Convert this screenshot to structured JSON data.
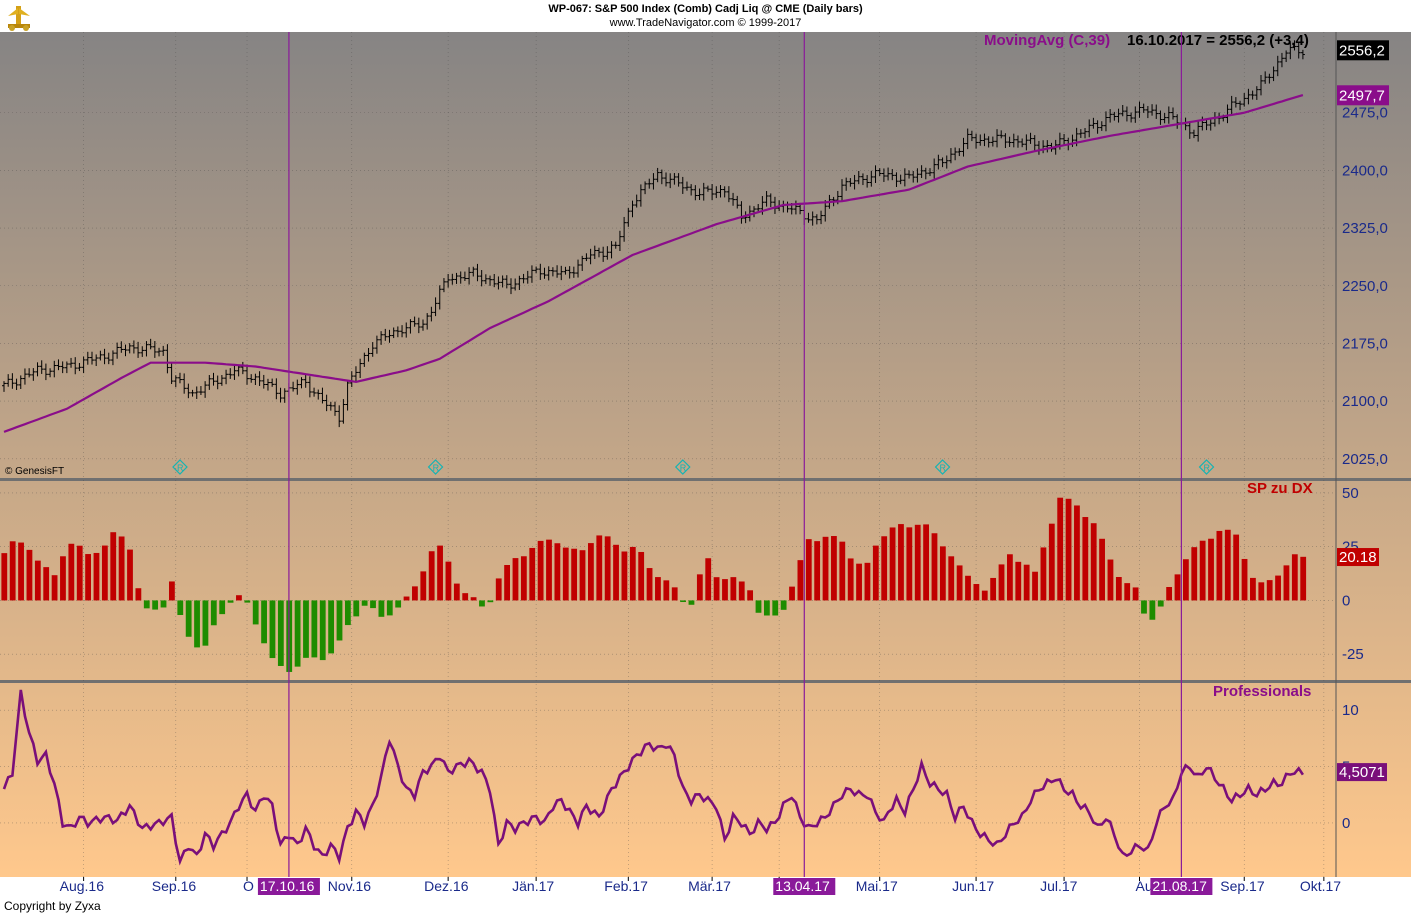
{
  "header": {
    "title_line": "WP-067:  S&P 500 Index (Comb) Cadj Liq @ CME  (Daily bars)",
    "subtitle_line": "www.TradeNavigator.com © 1999-2017"
  },
  "footer": {
    "copyright": "Copyright by Zyxa"
  },
  "colors": {
    "bg_top": "#868484",
    "bg_bottom": "#ffc88c",
    "ma": "#8a0d8a",
    "bar_up": "#c00000",
    "bar_down": "#1e8c00",
    "vline": "#8a1a9a",
    "price_box": "#000000",
    "ma_box": "#8a0d8a",
    "sp_box": "#c00000",
    "pro_box": "#7a0f7a",
    "separator": "#707070"
  },
  "chart_data": [
    {
      "type": "line",
      "panel": "price",
      "watermark": "© GenesisFT",
      "indicator_label": "MovingAvg (C,39)",
      "readout": "16.10.2017 = 2556,2 (+3,4)",
      "last_price": 2556.2,
      "last_price_label": "2556,2",
      "ma_last": 2497.7,
      "ma_last_label": "2497,7",
      "ylim": [
        2000,
        2580
      ],
      "yticks": [
        2025,
        2100,
        2175,
        2250,
        2325,
        2400,
        2475
      ],
      "ytick_labels": [
        "2025,0",
        "2100,0",
        "2175,0",
        "2250,0",
        "2325,0",
        "2400,0",
        "2475,0"
      ],
      "x_index_range": [
        0,
        310
      ],
      "price_knots": [
        [
          0,
          2120
        ],
        [
          8,
          2140
        ],
        [
          15,
          2145
        ],
        [
          25,
          2160
        ],
        [
          30,
          2170
        ],
        [
          38,
          2165
        ],
        [
          40,
          2130
        ],
        [
          45,
          2110
        ],
        [
          50,
          2125
        ],
        [
          55,
          2140
        ],
        [
          60,
          2130
        ],
        [
          66,
          2110
        ],
        [
          72,
          2125
        ],
        [
          76,
          2100
        ],
        [
          80,
          2080
        ],
        [
          82,
          2120
        ],
        [
          88,
          2175
        ],
        [
          95,
          2195
        ],
        [
          100,
          2200
        ],
        [
          106,
          2260
        ],
        [
          112,
          2265
        ],
        [
          120,
          2250
        ],
        [
          128,
          2270
        ],
        [
          134,
          2265
        ],
        [
          140,
          2290
        ],
        [
          146,
          2300
        ],
        [
          150,
          2360
        ],
        [
          156,
          2395
        ],
        [
          160,
          2385
        ],
        [
          166,
          2370
        ],
        [
          172,
          2375
        ],
        [
          176,
          2340
        ],
        [
          182,
          2360
        ],
        [
          188,
          2350
        ],
        [
          194,
          2335
        ],
        [
          200,
          2380
        ],
        [
          208,
          2395
        ],
        [
          216,
          2390
        ],
        [
          224,
          2410
        ],
        [
          230,
          2440
        ],
        [
          240,
          2440
        ],
        [
          250,
          2430
        ],
        [
          256,
          2445
        ],
        [
          264,
          2470
        ],
        [
          272,
          2478
        ],
        [
          278,
          2470
        ],
        [
          284,
          2450
        ],
        [
          290,
          2470
        ],
        [
          300,
          2510
        ],
        [
          306,
          2555
        ],
        [
          310,
          2556
        ]
      ],
      "ma_knots": [
        [
          0,
          2060
        ],
        [
          15,
          2090
        ],
        [
          28,
          2130
        ],
        [
          35,
          2150
        ],
        [
          48,
          2150
        ],
        [
          60,
          2145
        ],
        [
          72,
          2135
        ],
        [
          84,
          2125
        ],
        [
          96,
          2140
        ],
        [
          104,
          2155
        ],
        [
          116,
          2195
        ],
        [
          130,
          2230
        ],
        [
          150,
          2290
        ],
        [
          170,
          2330
        ],
        [
          186,
          2355
        ],
        [
          200,
          2360
        ],
        [
          216,
          2375
        ],
        [
          230,
          2405
        ],
        [
          246,
          2425
        ],
        [
          264,
          2445
        ],
        [
          280,
          2460
        ],
        [
          296,
          2475
        ],
        [
          310,
          2498
        ]
      ],
      "signal_markers_at": [
        42,
        103,
        162,
        224,
        287
      ]
    },
    {
      "type": "bar",
      "panel": "indicator",
      "title": "SP zu DX",
      "last_value": 20.18,
      "last_value_label": "20.18",
      "ylim": [
        -37,
        56
      ],
      "yticks": [
        50,
        25,
        0,
        -25
      ],
      "ytick_labels": [
        "50",
        "25",
        "0",
        "-25"
      ],
      "knots": [
        [
          0,
          22
        ],
        [
          3,
          28
        ],
        [
          6,
          25
        ],
        [
          9,
          15
        ],
        [
          12,
          12
        ],
        [
          14,
          22
        ],
        [
          16,
          26
        ],
        [
          20,
          22
        ],
        [
          24,
          25
        ],
        [
          27,
          33
        ],
        [
          30,
          25
        ],
        [
          32,
          5
        ],
        [
          34,
          -5
        ],
        [
          38,
          -2
        ],
        [
          40,
          8
        ],
        [
          42,
          -8
        ],
        [
          45,
          -20
        ],
        [
          48,
          -22
        ],
        [
          51,
          -8
        ],
        [
          54,
          0
        ],
        [
          57,
          2
        ],
        [
          60,
          -10
        ],
        [
          64,
          -28
        ],
        [
          67,
          -33
        ],
        [
          72,
          -28
        ],
        [
          77,
          -26
        ],
        [
          80,
          -20
        ],
        [
          83,
          -8
        ],
        [
          86,
          -2
        ],
        [
          90,
          -8
        ],
        [
          94,
          -3
        ],
        [
          97,
          2
        ],
        [
          100,
          15
        ],
        [
          103,
          27
        ],
        [
          106,
          18
        ],
        [
          109,
          5
        ],
        [
          112,
          0
        ],
        [
          115,
          -4
        ],
        [
          118,
          10
        ],
        [
          122,
          20
        ],
        [
          127,
          25
        ],
        [
          131,
          30
        ],
        [
          134,
          24
        ],
        [
          137,
          22
        ],
        [
          141,
          30
        ],
        [
          145,
          28
        ],
        [
          148,
          24
        ],
        [
          151,
          24
        ],
        [
          154,
          16
        ],
        [
          157,
          10
        ],
        [
          160,
          5
        ],
        [
          163,
          -2
        ],
        [
          165,
          0
        ],
        [
          167,
          22
        ],
        [
          170,
          12
        ],
        [
          175,
          9
        ],
        [
          178,
          6
        ],
        [
          180,
          -5
        ],
        [
          183,
          -10
        ],
        [
          186,
          -3
        ],
        [
          189,
          12
        ],
        [
          192,
          28
        ],
        [
          196,
          30
        ],
        [
          200,
          27
        ],
        [
          203,
          18
        ],
        [
          206,
          16
        ],
        [
          209,
          30
        ],
        [
          212,
          34
        ],
        [
          216,
          34
        ],
        [
          219,
          38
        ],
        [
          223,
          27
        ],
        [
          226,
          22
        ],
        [
          230,
          10
        ],
        [
          232,
          8
        ],
        [
          234,
          6
        ],
        [
          237,
          12
        ],
        [
          240,
          22
        ],
        [
          243,
          18
        ],
        [
          246,
          12
        ],
        [
          249,
          32
        ],
        [
          252,
          47
        ],
        [
          256,
          45
        ],
        [
          260,
          35
        ],
        [
          264,
          20
        ],
        [
          267,
          8
        ],
        [
          270,
          5
        ],
        [
          272,
          -5
        ],
        [
          274,
          -8
        ],
        [
          276,
          -4
        ],
        [
          279,
          10
        ],
        [
          282,
          20
        ],
        [
          286,
          27
        ],
        [
          290,
          33
        ],
        [
          294,
          30
        ],
        [
          297,
          16
        ],
        [
          299,
          6
        ],
        [
          302,
          9
        ],
        [
          305,
          15
        ],
        [
          308,
          20
        ],
        [
          310,
          20
        ]
      ]
    },
    {
      "type": "line",
      "panel": "indicator",
      "title": "Professionals",
      "last_value": 4.5071,
      "last_value_label": "4,5071",
      "ylim": [
        -4.8,
        12.5
      ],
      "yticks": [
        10,
        5,
        0
      ],
      "ytick_labels": [
        "10",
        "5",
        "0"
      ],
      "knots": [
        [
          0,
          3
        ],
        [
          2,
          4.5
        ],
        [
          4,
          11.5
        ],
        [
          6,
          8
        ],
        [
          8,
          5.5
        ],
        [
          10,
          6
        ],
        [
          12,
          3.5
        ],
        [
          14,
          0
        ],
        [
          16,
          -0.5
        ],
        [
          18,
          0.5
        ],
        [
          20,
          0
        ],
        [
          24,
          0.5
        ],
        [
          27,
          0.2
        ],
        [
          30,
          1.5
        ],
        [
          33,
          -0.5
        ],
        [
          37,
          0
        ],
        [
          40,
          0.5
        ],
        [
          42,
          -3.5
        ],
        [
          44,
          -2
        ],
        [
          46,
          -3
        ],
        [
          48,
          -1
        ],
        [
          50,
          -2
        ],
        [
          52,
          -1
        ],
        [
          54,
          0
        ],
        [
          56,
          1.5
        ],
        [
          58,
          2.5
        ],
        [
          60,
          1
        ],
        [
          62,
          2.5
        ],
        [
          64,
          1.5
        ],
        [
          66,
          -2
        ],
        [
          68,
          -1
        ],
        [
          70,
          -2
        ],
        [
          72,
          -0.5
        ],
        [
          74,
          -2
        ],
        [
          76,
          -3
        ],
        [
          78,
          -2
        ],
        [
          80,
          -3
        ],
        [
          82,
          -0.5
        ],
        [
          84,
          1
        ],
        [
          86,
          0
        ],
        [
          88,
          1.5
        ],
        [
          90,
          4
        ],
        [
          92,
          7.5
        ],
        [
          94,
          5
        ],
        [
          96,
          3
        ],
        [
          98,
          2.5
        ],
        [
          100,
          4.5
        ],
        [
          102,
          5
        ],
        [
          104,
          6
        ],
        [
          106,
          4.5
        ],
        [
          108,
          5
        ],
        [
          111,
          5.5
        ],
        [
          114,
          4.5
        ],
        [
          116,
          3
        ],
        [
          118,
          -2
        ],
        [
          120,
          0
        ],
        [
          122,
          -0.5
        ],
        [
          124,
          0
        ],
        [
          127,
          0.5
        ],
        [
          129,
          0
        ],
        [
          131,
          1.5
        ],
        [
          133,
          2
        ],
        [
          135,
          1
        ],
        [
          137,
          0
        ],
        [
          139,
          1.5
        ],
        [
          142,
          0.5
        ],
        [
          145,
          3
        ],
        [
          148,
          4.5
        ],
        [
          151,
          6
        ],
        [
          154,
          7
        ],
        [
          156,
          6.5
        ],
        [
          158,
          7
        ],
        [
          160,
          6
        ],
        [
          162,
          3
        ],
        [
          164,
          2
        ],
        [
          166,
          2.5
        ],
        [
          168,
          2
        ],
        [
          170,
          1.5
        ],
        [
          172,
          -1.5
        ],
        [
          174,
          0.5
        ],
        [
          176,
          0
        ],
        [
          178,
          -1
        ],
        [
          180,
          0
        ],
        [
          182,
          -0.5
        ],
        [
          184,
          0
        ],
        [
          186,
          1.5
        ],
        [
          188,
          2.5
        ],
        [
          190,
          0.5
        ],
        [
          192,
          -0.5
        ],
        [
          194,
          0
        ],
        [
          196,
          0.5
        ],
        [
          198,
          1.5
        ],
        [
          200,
          2.5
        ],
        [
          202,
          3
        ],
        [
          204,
          2.5
        ],
        [
          206,
          2.5
        ],
        [
          208,
          1
        ],
        [
          210,
          0
        ],
        [
          211,
          1
        ],
        [
          213,
          2
        ],
        [
          215,
          1
        ],
        [
          217,
          3
        ],
        [
          219,
          5
        ],
        [
          221,
          3.5
        ],
        [
          223,
          3
        ],
        [
          225,
          2.5
        ],
        [
          227,
          0.5
        ],
        [
          229,
          1.5
        ],
        [
          231,
          0
        ],
        [
          233,
          -1
        ],
        [
          235,
          -1.5
        ],
        [
          237,
          -2
        ],
        [
          239,
          -1
        ],
        [
          241,
          0
        ],
        [
          243,
          0.5
        ],
        [
          245,
          2
        ],
        [
          247,
          3
        ],
        [
          249,
          3.5
        ],
        [
          251,
          4
        ],
        [
          253,
          3
        ],
        [
          255,
          2.5
        ],
        [
          257,
          1.5
        ],
        [
          259,
          1
        ],
        [
          261,
          -0.5
        ],
        [
          263,
          0.5
        ],
        [
          265,
          -1
        ],
        [
          267,
          -3
        ],
        [
          269,
          -2.5
        ],
        [
          271,
          -2
        ],
        [
          273,
          -2.5
        ],
        [
          275,
          0
        ],
        [
          277,
          1.5
        ],
        [
          279,
          2
        ],
        [
          281,
          4.5
        ],
        [
          283,
          5
        ],
        [
          285,
          4
        ],
        [
          287,
          5
        ],
        [
          289,
          4
        ],
        [
          291,
          3
        ],
        [
          293,
          2
        ],
        [
          295,
          2.5
        ],
        [
          297,
          3
        ],
        [
          299,
          2.5
        ],
        [
          301,
          3
        ],
        [
          303,
          3.5
        ],
        [
          305,
          3.5
        ],
        [
          307,
          4.5
        ],
        [
          310,
          4.5
        ]
      ]
    }
  ],
  "time_axis": {
    "months": [
      {
        "label": "Aug.16",
        "i": 19
      },
      {
        "label": "Sep.16",
        "i": 41
      },
      {
        "label": "O",
        "i": 58
      },
      {
        "label": "Nov.16",
        "i": 83
      },
      {
        "label": "Dez.16",
        "i": 106
      },
      {
        "label": "Jän.17",
        "i": 127
      },
      {
        "label": "Feb.17",
        "i": 149
      },
      {
        "label": "Mär.17",
        "i": 169
      },
      {
        "label": "A",
        "i": 185
      },
      {
        "label": "Mai.17",
        "i": 209
      },
      {
        "label": "Jun.17",
        "i": 232
      },
      {
        "label": "Jul.17",
        "i": 253
      },
      {
        "label": "Aug",
        "i": 271
      },
      {
        "label": "Sep.17",
        "i": 296
      },
      {
        "label": "Okt.17",
        "i": 315
      }
    ],
    "highlighted_dates": [
      {
        "label": "17.10.16",
        "i": 68
      },
      {
        "label": "13.04.17",
        "i": 191
      },
      {
        "label": "21.08.17",
        "i": 281
      }
    ]
  }
}
